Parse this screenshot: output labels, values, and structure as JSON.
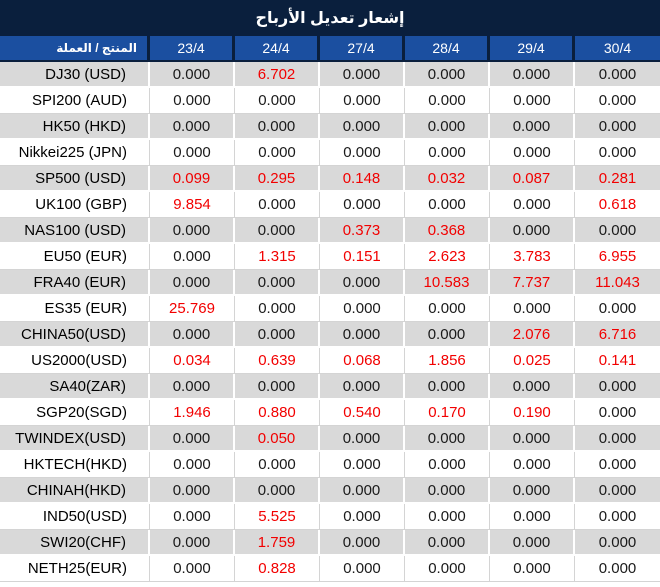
{
  "title": "إشعار تعديل الأرباح",
  "colors": {
    "title_bg": "#0a1f3d",
    "header_bg": "#1b4fa0",
    "row_alt_bg": "#d9d9d9",
    "grid_light": "#d4d4d4",
    "zero_text": "#1a1a1a",
    "nonzero_text": "#f20000"
  },
  "table": {
    "product_header": "المنتج / العملة",
    "date_headers": [
      "23/4",
      "24/4",
      "27/4",
      "28/4",
      "29/4",
      "30/4"
    ],
    "rows": [
      {
        "product": "DJ30 (USD)",
        "values": [
          "0.000",
          "6.702",
          "0.000",
          "0.000",
          "0.000",
          "0.000"
        ]
      },
      {
        "product": "SPI200 (AUD)",
        "values": [
          "0.000",
          "0.000",
          "0.000",
          "0.000",
          "0.000",
          "0.000"
        ]
      },
      {
        "product": "HK50 (HKD)",
        "values": [
          "0.000",
          "0.000",
          "0.000",
          "0.000",
          "0.000",
          "0.000"
        ]
      },
      {
        "product": "Nikkei225 (JPN)",
        "values": [
          "0.000",
          "0.000",
          "0.000",
          "0.000",
          "0.000",
          "0.000"
        ]
      },
      {
        "product": "SP500 (USD)",
        "values": [
          "0.099",
          "0.295",
          "0.148",
          "0.032",
          "0.087",
          "0.281"
        ]
      },
      {
        "product": "UK100 (GBP)",
        "values": [
          "9.854",
          "0.000",
          "0.000",
          "0.000",
          "0.000",
          "0.618"
        ]
      },
      {
        "product": "NAS100 (USD)",
        "values": [
          "0.000",
          "0.000",
          "0.373",
          "0.368",
          "0.000",
          "0.000"
        ]
      },
      {
        "product": "EU50 (EUR)",
        "values": [
          "0.000",
          "1.315",
          "0.151",
          "2.623",
          "3.783",
          "6.955"
        ]
      },
      {
        "product": "FRA40 (EUR)",
        "values": [
          "0.000",
          "0.000",
          "0.000",
          "10.583",
          "7.737",
          "11.043"
        ]
      },
      {
        "product": "ES35 (EUR)",
        "values": [
          "25.769",
          "0.000",
          "0.000",
          "0.000",
          "0.000",
          "0.000"
        ]
      },
      {
        "product": "CHINA50(USD)",
        "values": [
          "0.000",
          "0.000",
          "0.000",
          "0.000",
          "2.076",
          "6.716"
        ]
      },
      {
        "product": "US2000(USD)",
        "values": [
          "0.034",
          "0.639",
          "0.068",
          "1.856",
          "0.025",
          "0.141"
        ]
      },
      {
        "product": "SA40(ZAR)",
        "values": [
          "0.000",
          "0.000",
          "0.000",
          "0.000",
          "0.000",
          "0.000"
        ]
      },
      {
        "product": "SGP20(SGD)",
        "values": [
          "1.946",
          "0.880",
          "0.540",
          "0.170",
          "0.190",
          "0.000"
        ]
      },
      {
        "product": "TWINDEX(USD)",
        "values": [
          "0.000",
          "0.050",
          "0.000",
          "0.000",
          "0.000",
          "0.000"
        ]
      },
      {
        "product": "HKTECH(HKD)",
        "values": [
          "0.000",
          "0.000",
          "0.000",
          "0.000",
          "0.000",
          "0.000"
        ]
      },
      {
        "product": "CHINAH(HKD)",
        "values": [
          "0.000",
          "0.000",
          "0.000",
          "0.000",
          "0.000",
          "0.000"
        ]
      },
      {
        "product": "IND50(USD)",
        "values": [
          "0.000",
          "5.525",
          "0.000",
          "0.000",
          "0.000",
          "0.000"
        ]
      },
      {
        "product": "SWI20(CHF)",
        "values": [
          "0.000",
          "1.759",
          "0.000",
          "0.000",
          "0.000",
          "0.000"
        ]
      },
      {
        "product": "NETH25(EUR)",
        "values": [
          "0.000",
          "0.828",
          "0.000",
          "0.000",
          "0.000",
          "0.000"
        ]
      }
    ]
  }
}
